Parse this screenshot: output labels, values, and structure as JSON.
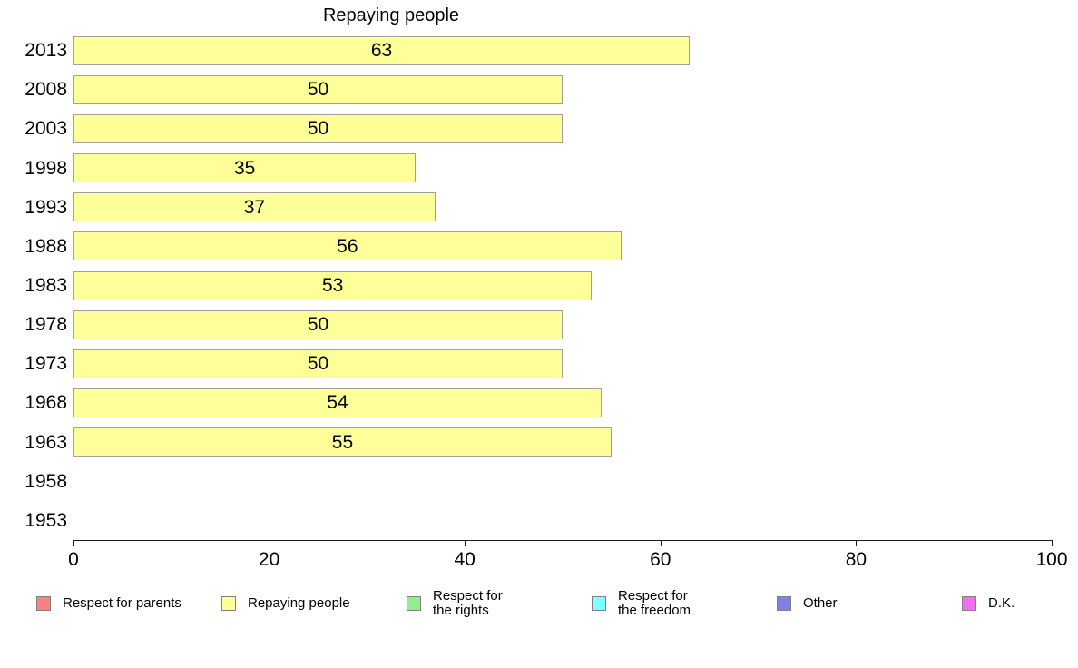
{
  "chart_data": {
    "type": "bar",
    "orientation": "horizontal",
    "title": "Repaying people",
    "categories": [
      "2013",
      "2008",
      "2003",
      "1998",
      "1993",
      "1988",
      "1983",
      "1978",
      "1973",
      "1968",
      "1963",
      "1958",
      "1953"
    ],
    "values": [
      63,
      50,
      50,
      35,
      37,
      56,
      53,
      50,
      50,
      54,
      55,
      null,
      null
    ],
    "bar_labels": [
      "63",
      "50",
      "50",
      "35",
      "37",
      "56",
      "53",
      "50",
      "50",
      "54",
      "55",
      "",
      ""
    ],
    "bar_label_position": "center",
    "xlim": [
      0,
      100
    ],
    "x_ticks": [
      "0",
      "20",
      "40",
      "60",
      "80",
      "100"
    ],
    "grid": "off",
    "colors": {
      "bar_fill": "#FFFF99",
      "bar_border": "#A0A0A0",
      "axis": "#1A1A1A",
      "text": "#000000",
      "swatch_border": "#808080"
    },
    "legend": {
      "position": "bottom",
      "items": [
        {
          "label": "Respect for parents",
          "color": "#FF8080"
        },
        {
          "label": "Repaying people",
          "color": "#FFFF99"
        },
        {
          "label": "Respect for\nthe rights",
          "color": "#90EE90"
        },
        {
          "label": "Respect for\nthe freedom",
          "color": "#80FFFF"
        },
        {
          "label": "Other",
          "color": "#8080E0"
        },
        {
          "label": "D.K.",
          "color": "#F070F0"
        }
      ]
    }
  }
}
